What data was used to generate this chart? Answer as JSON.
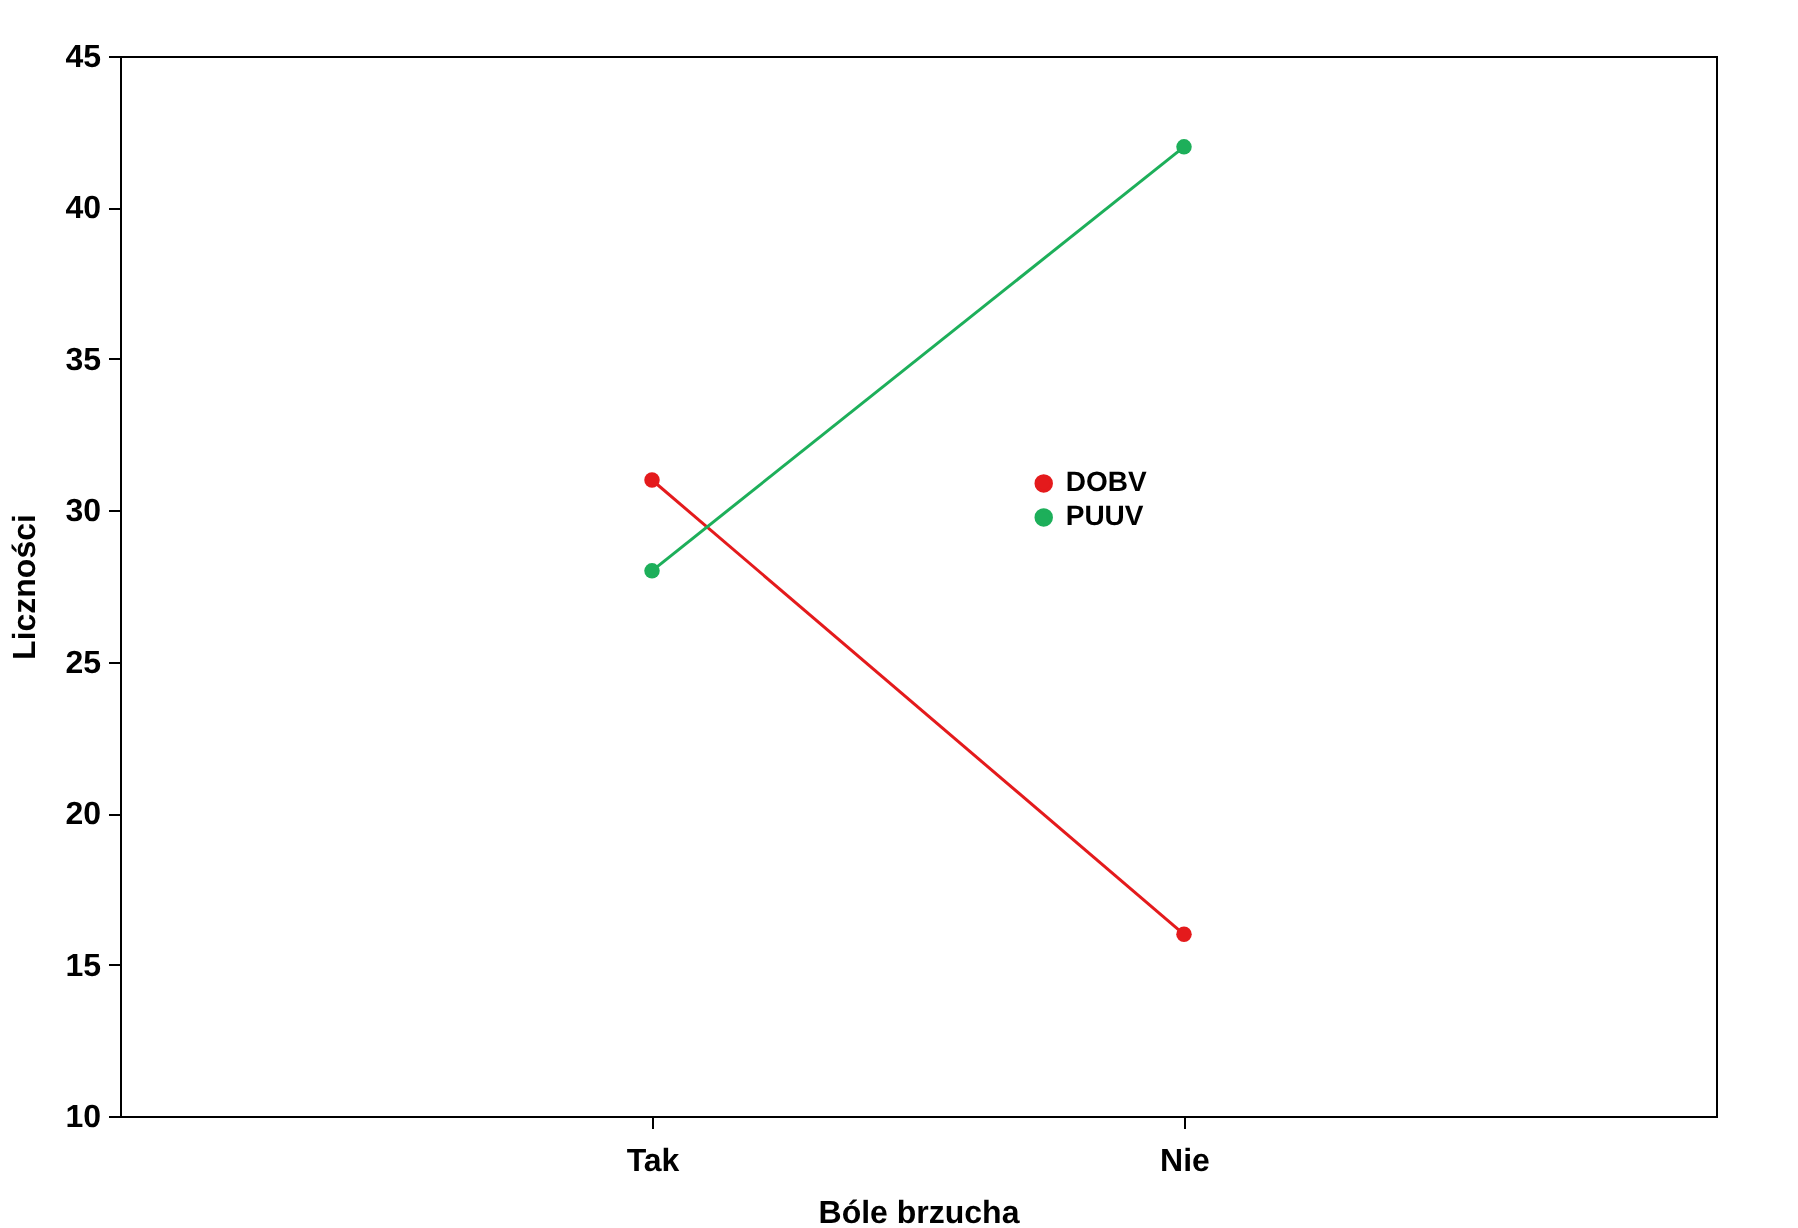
{
  "chart_data": {
    "type": "line",
    "xlabel": "Bóle brzucha",
    "ylabel": "Liczności",
    "categories": [
      "Tak",
      "Nie"
    ],
    "series": [
      {
        "name": "DOBV",
        "color": "#e41a1c",
        "values": [
          31,
          16
        ]
      },
      {
        "name": "PUUV",
        "color": "#1daf5a",
        "values": [
          28,
          42
        ]
      }
    ],
    "ylim": [
      10,
      45
    ],
    "yticks": [
      10,
      15,
      20,
      25,
      30,
      35,
      40,
      45
    ],
    "legend": "center",
    "marker": "circle",
    "line_style": "solid",
    "grid": false
  }
}
